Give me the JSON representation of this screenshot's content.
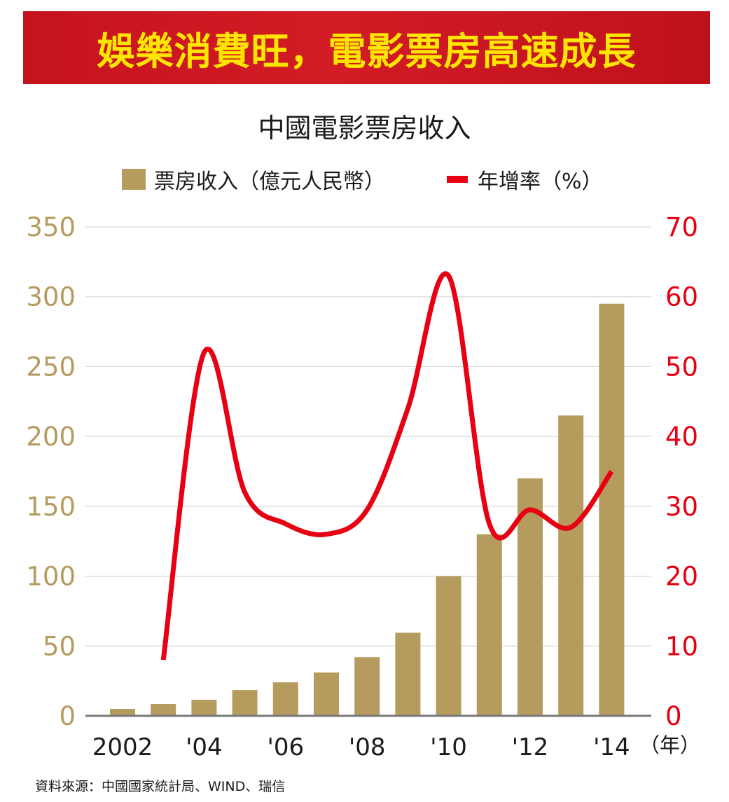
{
  "banner": {
    "title": "娛樂消費旺，電影票房高速成長"
  },
  "chart_data": {
    "type": "bar",
    "title": "中國電影票房收入",
    "x": [
      2002,
      2003,
      2004,
      2005,
      2006,
      2007,
      2008,
      2009,
      2010,
      2011,
      2012,
      2013,
      2014
    ],
    "x_tick_labels": [
      {
        "x": 2002,
        "label": "2002"
      },
      {
        "x": 2004,
        "label": "'04"
      },
      {
        "x": 2006,
        "label": "'06"
      },
      {
        "x": 2008,
        "label": "'08"
      },
      {
        "x": 2010,
        "label": "'10"
      },
      {
        "x": 2012,
        "label": "'12"
      },
      {
        "x": 2014,
        "label": "'14"
      }
    ],
    "x_unit": "（年）",
    "series": [
      {
        "name": "票房收入（億元人民幣）",
        "type": "bar",
        "axis": "left",
        "color": "#b59c5e",
        "values": [
          5,
          8.5,
          11.5,
          18.5,
          24,
          31,
          42,
          59.5,
          100,
          130,
          170,
          215,
          295
        ]
      },
      {
        "name": "年增率（%）",
        "type": "line",
        "axis": "right",
        "color": "#e60012",
        "values": [
          null,
          8,
          52,
          32,
          27.5,
          26,
          29.5,
          44,
          63,
          27.5,
          29.5,
          27,
          35
        ]
      }
    ],
    "y_left": {
      "min": 0,
      "max": 350,
      "ticks": [
        0,
        50,
        100,
        150,
        200,
        250,
        300,
        350
      ],
      "color": "#b59c5e"
    },
    "y_right": {
      "min": 0,
      "max": 70,
      "ticks": [
        0,
        10,
        20,
        30,
        40,
        50,
        60,
        70
      ],
      "color": "#e60012"
    },
    "grid": true,
    "legend": "top"
  },
  "source": "資料來源：中國國家統計局、WIND、瑞信"
}
